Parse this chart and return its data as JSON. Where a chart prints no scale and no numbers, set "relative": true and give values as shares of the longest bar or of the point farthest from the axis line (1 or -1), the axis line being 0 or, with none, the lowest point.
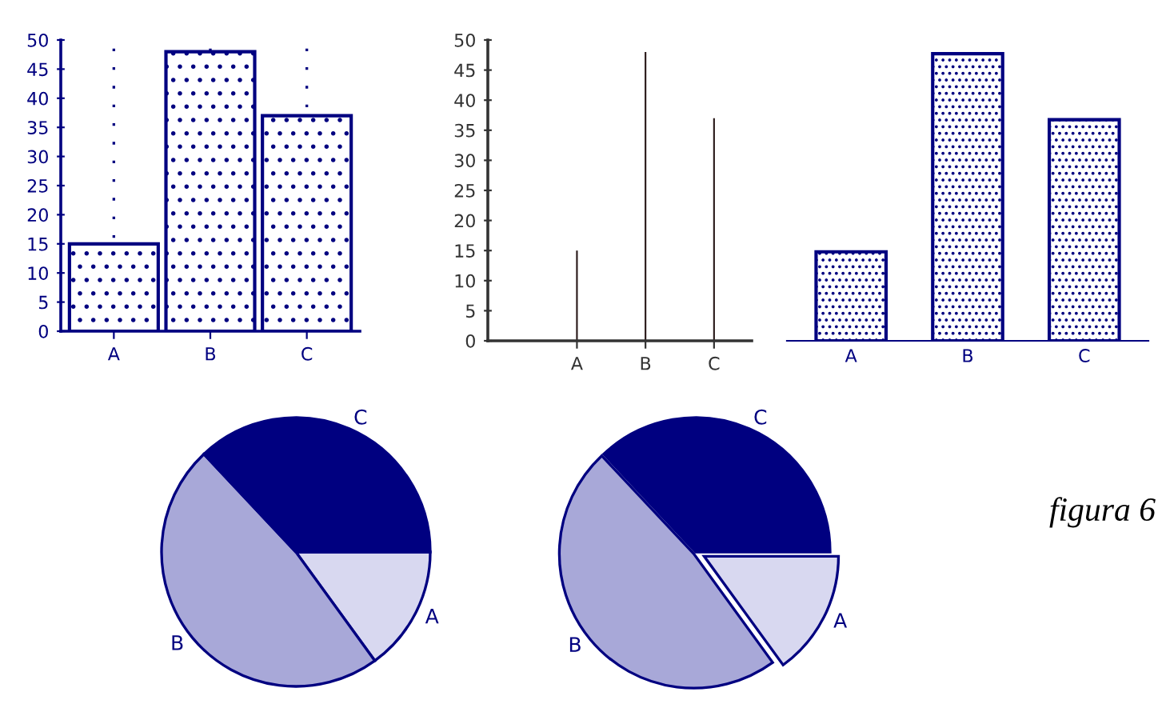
{
  "chart_data": [
    {
      "type": "bar",
      "categories": [
        "A",
        "B",
        "C"
      ],
      "values": [
        15,
        48,
        37
      ],
      "color": "#000080",
      "ylim": [
        0,
        50
      ],
      "yticks": [
        0,
        5,
        10,
        15,
        20,
        25,
        30,
        35,
        40,
        45,
        50
      ],
      "grid": "x"
    },
    {
      "type": "bar",
      "categories": [
        "A",
        "B",
        "C"
      ],
      "values": [
        15,
        48,
        37
      ],
      "color": "#2a1a1a",
      "ylim": [
        0,
        50
      ],
      "yticks": [
        0,
        5,
        10,
        15,
        20,
        25,
        30,
        35,
        40,
        45,
        50
      ]
    },
    {
      "type": "bar",
      "categories": [
        "A",
        "B",
        "C"
      ],
      "values": [
        0.31,
        1,
        0.77
      ],
      "color": "#000080",
      "relative": true
    },
    {
      "type": "pie",
      "categories": [
        "A",
        "B",
        "C"
      ],
      "values": [
        15,
        48,
        37
      ],
      "colors": [
        "#d8d8f0",
        "#a8a8d8",
        "#000080"
      ]
    },
    {
      "type": "pie",
      "categories": [
        "A",
        "B",
        "C"
      ],
      "values": [
        15,
        48,
        37
      ],
      "colors": [
        "#d8d8f0",
        "#a8a8d8",
        "#000080"
      ],
      "annotations": [
        "figura 6"
      ]
    }
  ]
}
